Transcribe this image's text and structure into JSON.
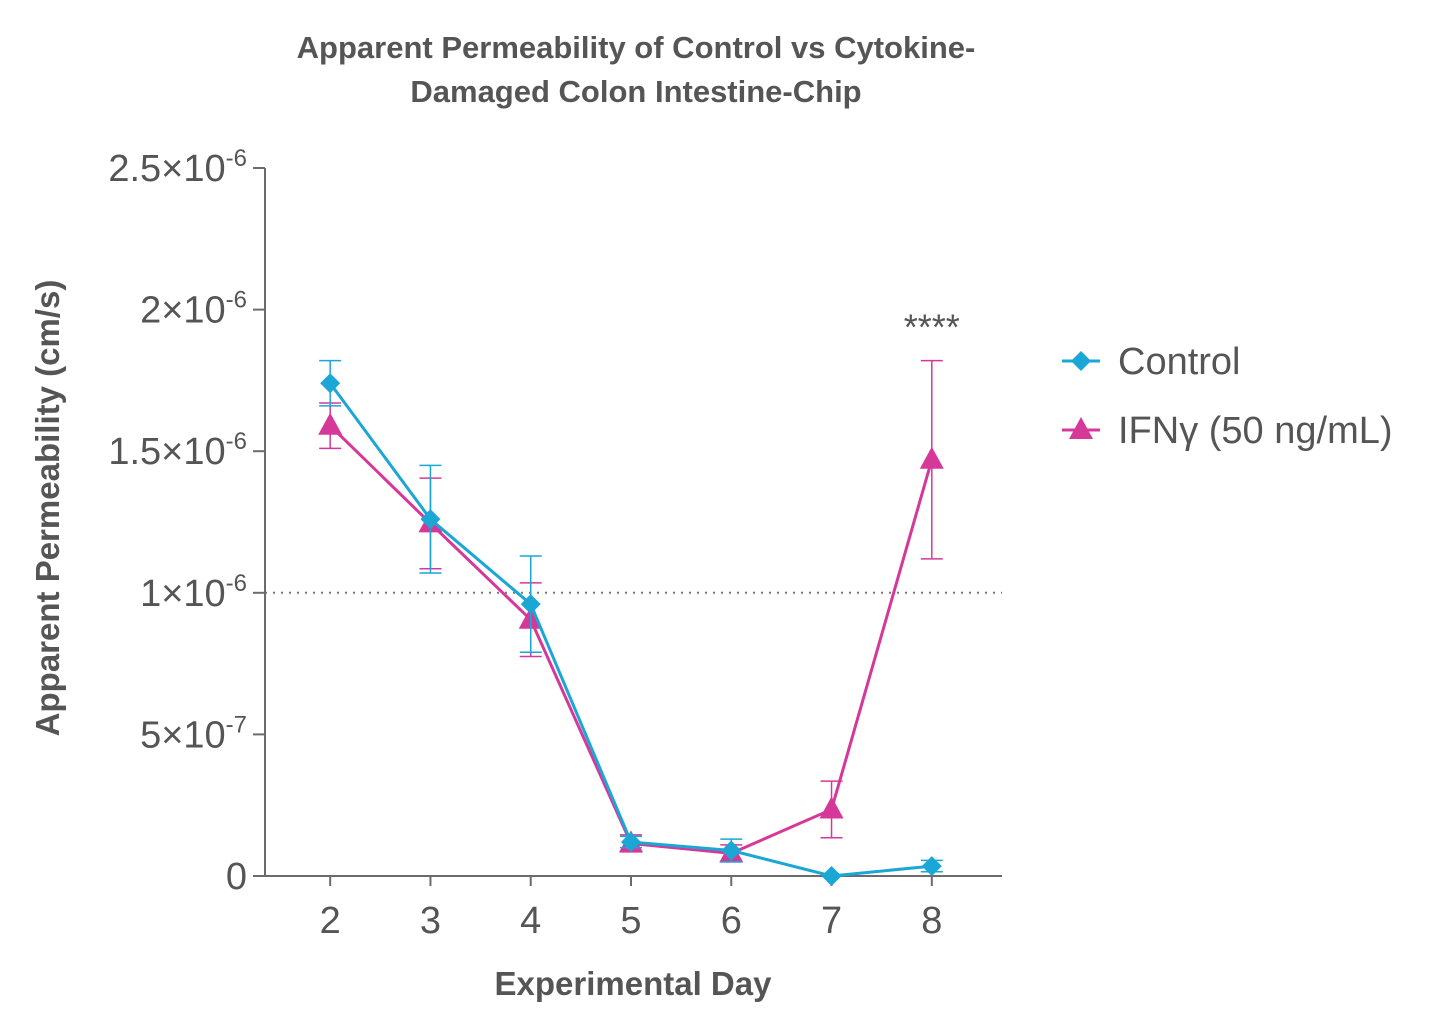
{
  "chart_data": {
    "type": "line",
    "title_lines": [
      "Apparent Permeability of Control vs Cytokine-",
      "Damaged Colon Intestine-Chip"
    ],
    "xlabel": "Experimental Day",
    "ylabel": "Apparent Permeability (cm/s)",
    "x": [
      2,
      3,
      4,
      5,
      6,
      7,
      8
    ],
    "xlim": [
      1.35,
      8.7
    ],
    "ylim": [
      0,
      2.5e-06
    ],
    "y_ticks": [
      {
        "value": 0,
        "base": "0",
        "exp": ""
      },
      {
        "value": 5e-07,
        "base": "5×10",
        "exp": "-7"
      },
      {
        "value": 1e-06,
        "base": "1×10",
        "exp": "-6"
      },
      {
        "value": 1.5e-06,
        "base": "1.5×10",
        "exp": "-6"
      },
      {
        "value": 2e-06,
        "base": "2×10",
        "exp": "-6"
      },
      {
        "value": 2.5e-06,
        "base": "2.5×10",
        "exp": "-6"
      }
    ],
    "x_tick_labels": [
      "2",
      "3",
      "4",
      "5",
      "6",
      "7",
      "8"
    ],
    "reference_line": {
      "value": 1e-06,
      "style": "dotted"
    },
    "legend_position": "right",
    "series": [
      {
        "name": "Control",
        "marker": "diamond",
        "color": "#1AA7D6",
        "values": [
          1.74e-06,
          1.26e-06,
          9.6e-07,
          1.2e-07,
          9e-08,
          0,
          3.5e-08
        ],
        "errors": [
          8e-08,
          1.9e-07,
          1.7e-07,
          2e-08,
          4e-08,
          0,
          2e-08
        ]
      },
      {
        "name": "IFNγ (50 ng/mL)",
        "marker": "triangle",
        "color": "#D6389A",
        "values": [
          1.59e-06,
          1.245e-06,
          9.05e-07,
          1.15e-07,
          8e-08,
          2.35e-07,
          1.47e-06
        ],
        "errors": [
          8e-08,
          1.6e-07,
          1.3e-07,
          3e-08,
          3e-08,
          1e-07,
          3.5e-07
        ]
      }
    ],
    "annotations": [
      {
        "text": "****",
        "x": 8,
        "y": 1.98e-06
      }
    ]
  }
}
